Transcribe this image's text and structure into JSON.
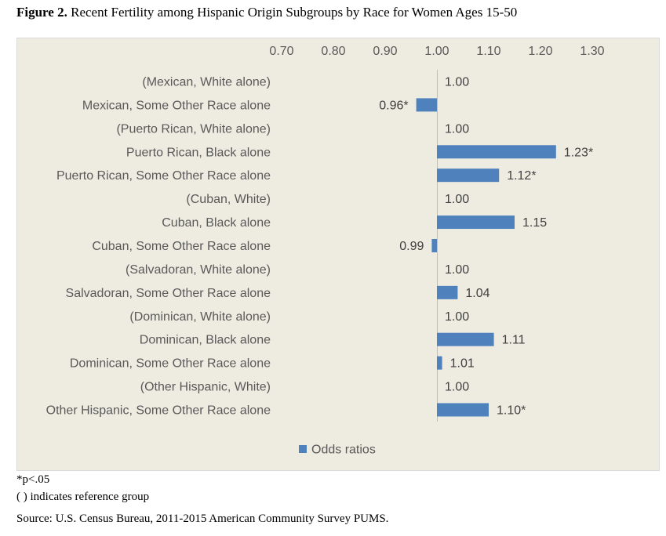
{
  "figure": {
    "label": "Figure 2.",
    "title": " Recent Fertility among Hispanic Origin Subgroups by Race for Women Ages 15-50"
  },
  "notes": {
    "significance": "*p<.05",
    "reference": "( ) indicates reference group",
    "source": "Source: U.S. Census Bureau, 2011-2015 American Community Survey PUMS."
  },
  "chart_data": {
    "type": "bar",
    "orientation": "horizontal",
    "title": "",
    "xlabel": "",
    "ylabel": "",
    "xlim": [
      0.7,
      1.3
    ],
    "x_ticks": [
      "0.70",
      "0.80",
      "0.90",
      "1.00",
      "1.10",
      "1.20",
      "1.30"
    ],
    "baseline": 1.0,
    "axis_position": "top",
    "legend_position": "bottom",
    "grid": false,
    "bar_color": "#4f81bd",
    "background_color": "#eeece1",
    "categories": [
      "(Mexican, White alone)",
      "Mexican, Some Other Race alone",
      "(Puerto Rican, White alone)",
      "Puerto Rican, Black alone",
      "Puerto Rican, Some Other Race alone",
      "(Cuban, White)",
      "Cuban, Black alone",
      "Cuban, Some Other Race alone",
      "(Salvadoran, White alone)",
      "Salvadoran, Some Other Race alone",
      "(Dominican, White alone)",
      "Dominican, Black alone",
      "Dominican, Some Other Race alone",
      "(Other Hispanic, White)",
      "Other Hispanic, Some Other Race alone"
    ],
    "series": [
      {
        "name": "Odds ratios",
        "values": [
          1.0,
          0.96,
          1.0,
          1.23,
          1.12,
          1.0,
          1.15,
          0.99,
          1.0,
          1.04,
          1.0,
          1.11,
          1.01,
          1.0,
          1.1
        ],
        "labels": [
          "1.00",
          "0.96*",
          "1.00",
          "1.23*",
          "1.12*",
          "1.00",
          "1.15",
          "0.99",
          "1.00",
          "1.04",
          "1.00",
          "1.11",
          "1.01",
          "1.00",
          "1.10*"
        ]
      }
    ]
  }
}
